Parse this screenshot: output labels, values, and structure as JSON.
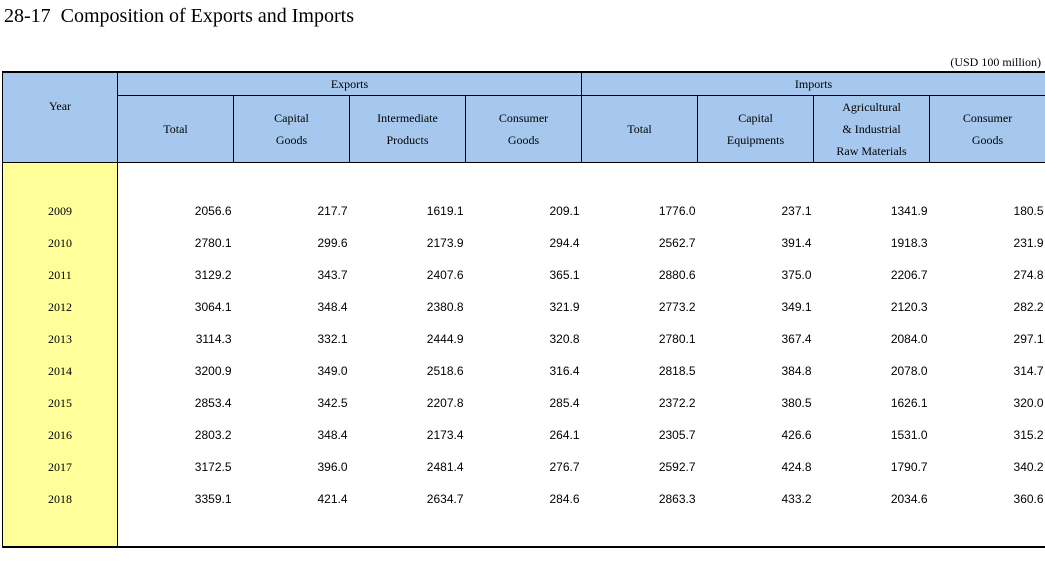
{
  "title": "28-17  Composition of Exports and Imports",
  "unit": "(USD 100 million)",
  "header": {
    "year": "Year",
    "exports": "Exports",
    "imports": "Imports",
    "exports_cols": [
      "Total",
      "Capital\nGoods",
      "Intermediate\nProducts",
      "Consumer\nGoods"
    ],
    "imports_cols": [
      "Total",
      "Capital\nEquipments",
      "Agricultural\n& Industrial\nRaw Materials",
      "Consumer\nGoods"
    ]
  },
  "rows": [
    {
      "year": "2009",
      "values": [
        "2056.6",
        "217.7",
        "1619.1",
        "209.1",
        "1776.0",
        "237.1",
        "1341.9",
        "180.5"
      ]
    },
    {
      "year": "2010",
      "values": [
        "2780.1",
        "299.6",
        "2173.9",
        "294.4",
        "2562.7",
        "391.4",
        "1918.3",
        "231.9"
      ]
    },
    {
      "year": "2011",
      "values": [
        "3129.2",
        "343.7",
        "2407.6",
        "365.1",
        "2880.6",
        "375.0",
        "2206.7",
        "274.8"
      ]
    },
    {
      "year": "2012",
      "values": [
        "3064.1",
        "348.4",
        "2380.8",
        "321.9",
        "2773.2",
        "349.1",
        "2120.3",
        "282.2"
      ]
    },
    {
      "year": "2013",
      "values": [
        "3114.3",
        "332.1",
        "2444.9",
        "320.8",
        "2780.1",
        "367.4",
        "2084.0",
        "297.1"
      ]
    },
    {
      "year": "2014",
      "values": [
        "3200.9",
        "349.0",
        "2518.6",
        "316.4",
        "2818.5",
        "384.8",
        "2078.0",
        "314.7"
      ]
    },
    {
      "year": "2015",
      "values": [
        "2853.4",
        "342.5",
        "2207.8",
        "285.4",
        "2372.2",
        "380.5",
        "1626.1",
        "320.0"
      ]
    },
    {
      "year": "2016",
      "values": [
        "2803.2",
        "348.4",
        "2173.4",
        "264.1",
        "2305.7",
        "426.6",
        "1531.0",
        "315.2"
      ]
    },
    {
      "year": "2017",
      "values": [
        "3172.5",
        "396.0",
        "2481.4",
        "276.7",
        "2592.7",
        "424.8",
        "1790.7",
        "340.2"
      ]
    },
    {
      "year": "2018",
      "values": [
        "3359.1",
        "421.4",
        "2634.7",
        "284.6",
        "2863.3",
        "433.2",
        "2034.6",
        "360.6"
      ]
    }
  ]
}
